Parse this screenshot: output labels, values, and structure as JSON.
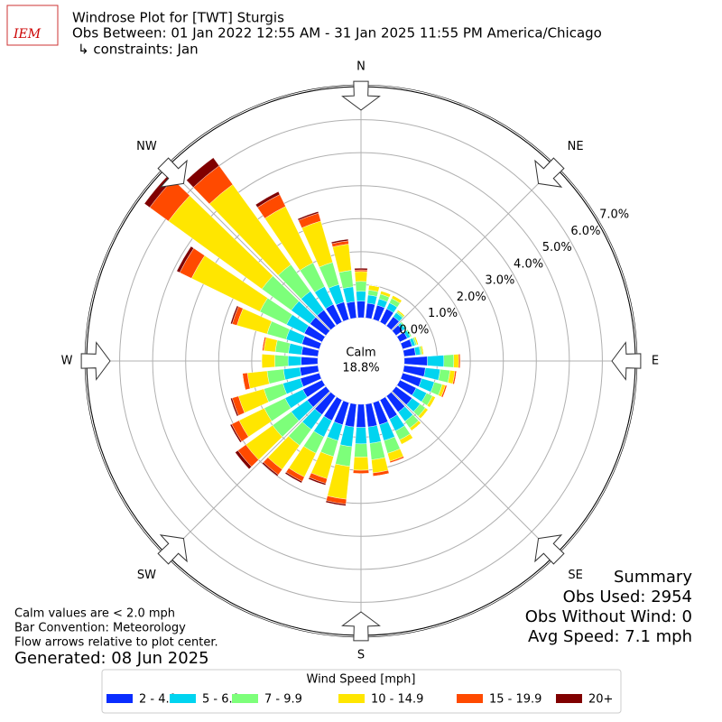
{
  "chart_data": {
    "type": "windrose",
    "logo": "IEM",
    "title": "Windrose Plot for [TWT] Sturgis",
    "subtitle": "Obs Between: 01 Jan 2022 12:55 AM - 31 Jan 2025 11:55 PM America/Chicago",
    "constraints": "↳ constraints: Jan",
    "compass": [
      "N",
      "NE",
      "E",
      "SE",
      "S",
      "SW",
      "W",
      "NW"
    ],
    "calm": {
      "label": "Calm",
      "value": 18.8,
      "value_label": "18.8%"
    },
    "x": [
      0,
      10,
      20,
      30,
      40,
      50,
      60,
      70,
      80,
      90,
      100,
      110,
      120,
      130,
      140,
      150,
      160,
      170,
      180,
      190,
      200,
      210,
      220,
      230,
      240,
      250,
      260,
      270,
      280,
      290,
      300,
      310,
      320,
      330,
      340,
      350
    ],
    "ylim": [
      0,
      7
    ],
    "yticks": [
      {
        "value": 0,
        "label": "0.0%"
      },
      {
        "value": 1,
        "label": "1.0%"
      },
      {
        "value": 2,
        "label": "2.0%"
      },
      {
        "value": 3,
        "label": "3.0%"
      },
      {
        "value": 4,
        "label": "4.0%"
      },
      {
        "value": 5,
        "label": "5.0%"
      },
      {
        "value": 6,
        "label": "6.0%"
      },
      {
        "value": 7,
        "label": "7.0%"
      }
    ],
    "grid": true,
    "legend_title": "Wind Speed [mph]",
    "series": [
      {
        "name": "2 - 4.9",
        "color": "#0a2dff",
        "values": [
          0.5,
          0.45,
          0.45,
          0.45,
          0.35,
          0.25,
          0.25,
          0.3,
          0.35,
          0.7,
          0.65,
          0.6,
          0.55,
          0.6,
          0.6,
          0.65,
          0.7,
          0.7,
          0.7,
          0.7,
          0.7,
          0.7,
          0.7,
          0.7,
          0.65,
          0.6,
          0.55,
          0.5,
          0.5,
          0.55,
          0.6,
          0.6,
          0.6,
          0.6,
          0.55,
          0.5
        ]
      },
      {
        "name": "5 - 6.9",
        "color": "#00d4f0",
        "values": [
          0.3,
          0.25,
          0.2,
          0.2,
          0.15,
          0.1,
          0.1,
          0.1,
          0.15,
          0.5,
          0.45,
          0.4,
          0.35,
          0.3,
          0.35,
          0.4,
          0.5,
          0.5,
          0.5,
          0.6,
          0.5,
          0.55,
          0.55,
          0.6,
          0.6,
          0.55,
          0.5,
          0.4,
          0.4,
          0.5,
          0.6,
          0.7,
          0.7,
          0.6,
          0.55,
          0.45
        ]
      },
      {
        "name": "7 - 9.9",
        "color": "#7dff7a",
        "values": [
          0.3,
          0.15,
          0.15,
          0.15,
          0.05,
          0.05,
          0.05,
          0.05,
          0.05,
          0.3,
          0.3,
          0.25,
          0.2,
          0.2,
          0.25,
          0.3,
          0.4,
          0.5,
          0.4,
          0.6,
          0.5,
          0.55,
          0.6,
          0.7,
          0.7,
          0.6,
          0.5,
          0.4,
          0.4,
          0.6,
          0.9,
          1.1,
          1.0,
          0.8,
          0.7,
          0.5
        ]
      },
      {
        "name": "10 - 14.9",
        "color": "#ffe600",
        "values": [
          0.3,
          0.15,
          0.1,
          0.1,
          0.05,
          0,
          0,
          0.05,
          0.05,
          0.15,
          0.15,
          0.1,
          0.1,
          0.1,
          0.1,
          0.15,
          0.25,
          0.4,
          0.4,
          1.0,
          0.7,
          0.8,
          0.9,
          1.0,
          0.85,
          0.8,
          0.6,
          0.4,
          0.35,
          0.95,
          2.3,
          3.5,
          3.0,
          1.9,
          1.3,
          0.8
        ]
      },
      {
        "name": "15 - 19.9",
        "color": "#ff4a00",
        "values": [
          0.05,
          0,
          0,
          0,
          0,
          0,
          0,
          0,
          0,
          0.05,
          0.05,
          0.05,
          0,
          0,
          0,
          0,
          0.05,
          0.1,
          0.1,
          0.15,
          0.15,
          0.15,
          0.2,
          0.3,
          0.25,
          0.2,
          0.15,
          0,
          0.05,
          0.15,
          0.4,
          0.7,
          0.7,
          0.4,
          0.25,
          0.1
        ]
      },
      {
        "name": "20+",
        "color": "#800000",
        "values": [
          0.05,
          0,
          0,
          0,
          0,
          0,
          0,
          0,
          0,
          0,
          0,
          0,
          0,
          0,
          0,
          0,
          0,
          0,
          0,
          0.05,
          0.05,
          0.05,
          0.05,
          0.1,
          0.05,
          0.05,
          0,
          0,
          0,
          0.05,
          0.1,
          0.2,
          0.3,
          0.1,
          0.05,
          0.05
        ]
      }
    ],
    "summary": [
      "Summary",
      "Obs Used: 2954",
      "Obs Without Wind: 0",
      "Avg Speed: 7.1 mph"
    ],
    "notes": [
      "Calm values are < 2.0 mph",
      "Bar Convention: Meteorology",
      "Flow arrows relative to plot center."
    ],
    "generated": "Generated: 08 Jun 2025"
  }
}
